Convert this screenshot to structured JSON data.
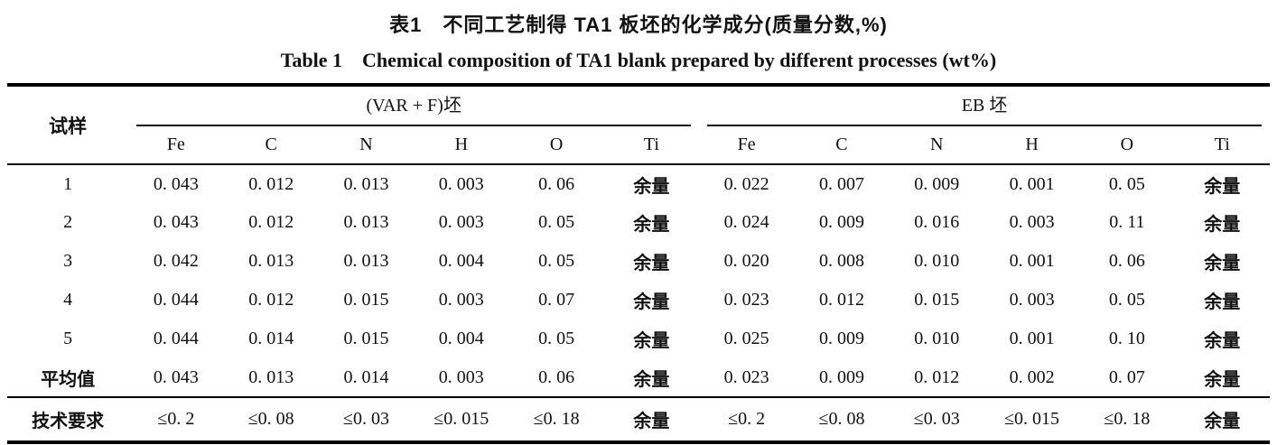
{
  "title": {
    "line_zh": "表1　不同工艺制得 TA1 板坯的化学成分(质量分数,%)",
    "line_en": "Table 1　Chemical composition of TA1 blank prepared by different processes (wt%)"
  },
  "table": {
    "sample_header": "试样",
    "group_varf_label": "(VAR + F)坯",
    "group_eb_label": "EB 坯",
    "element_headers": [
      "Fe",
      "C",
      "N",
      "H",
      "O",
      "Ti",
      "Fe",
      "C",
      "N",
      "H",
      "O",
      "Ti"
    ],
    "rows": [
      {
        "cells": [
          "1",
          "0. 043",
          "0. 012",
          "0. 013",
          "0. 003",
          "0. 06",
          "余量",
          "0. 022",
          "0. 007",
          "0. 009",
          "0. 001",
          "0. 05",
          "余量"
        ]
      },
      {
        "cells": [
          "2",
          "0. 043",
          "0. 012",
          "0. 013",
          "0. 003",
          "0. 05",
          "余量",
          "0. 024",
          "0. 009",
          "0. 016",
          "0. 003",
          "0. 11",
          "余量"
        ]
      },
      {
        "cells": [
          "3",
          "0. 042",
          "0. 013",
          "0. 013",
          "0. 004",
          "0. 05",
          "余量",
          "0. 020",
          "0. 008",
          "0. 010",
          "0. 001",
          "0. 06",
          "余量"
        ]
      },
      {
        "cells": [
          "4",
          "0. 044",
          "0. 012",
          "0. 015",
          "0. 003",
          "0. 07",
          "余量",
          "0. 023",
          "0. 012",
          "0. 015",
          "0. 003",
          "0. 05",
          "余量"
        ]
      },
      {
        "cells": [
          "5",
          "0. 044",
          "0. 014",
          "0. 015",
          "0. 004",
          "0. 05",
          "余量",
          "0. 025",
          "0. 009",
          "0. 010",
          "0. 001",
          "0. 10",
          "余量"
        ]
      },
      {
        "cells": [
          "平均值",
          "0. 043",
          "0. 013",
          "0. 014",
          "0. 003",
          "0. 06",
          "余量",
          "0. 023",
          "0. 009",
          "0. 012",
          "0. 002",
          "0. 07",
          "余量"
        ]
      },
      {
        "cells": [
          "技术要求",
          "≤0. 2",
          "≤0. 08",
          "≤0. 03",
          "≤0. 015",
          "≤0. 18",
          "余量",
          "≤0. 2",
          "≤0. 08",
          "≤0. 03",
          "≤0. 015",
          "≤0. 18",
          "余量"
        ]
      }
    ]
  }
}
